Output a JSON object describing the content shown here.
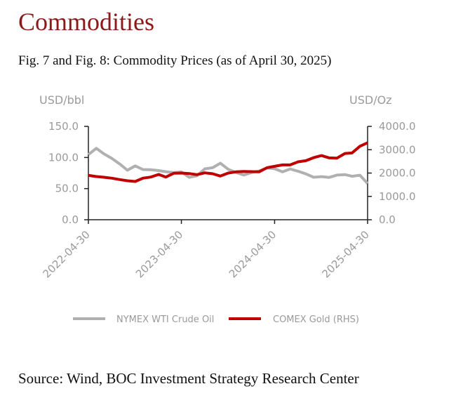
{
  "section_title": "Commodities",
  "figure_title": "Fig. 7 and Fig. 8: Commodity Prices (as of April 30, 2025)",
  "source_note": "Source: Wind, BOC Investment Strategy Research Center",
  "colors": {
    "heading": "#8b1a1a",
    "oil": "#b0b0b0",
    "gold": "#c00000",
    "axis": "#222222",
    "label": "#9a9a9a"
  },
  "chart_data": {
    "type": "line",
    "left_axis_unit": "USD/bbl",
    "right_axis_unit": "USD/Oz",
    "ylim_left": [
      0,
      150
    ],
    "ylim_right": [
      0,
      4000
    ],
    "y_ticks_left": [
      "0.0",
      "50.0",
      "100.0",
      "150.0"
    ],
    "y_ticks_right": [
      "0.0",
      "1000.0",
      "2000.0",
      "3000.0",
      "4000.0"
    ],
    "x_ticks": [
      "2022-04-30",
      "2023-04-30",
      "2024-04-30",
      "2025-04-30"
    ],
    "x_start": "2022-04-30",
    "x_end": "2025-04-30",
    "legend_position": "bottom",
    "grid": false,
    "series": [
      {
        "name": "NYMEX WTI Crude Oil",
        "axis": "left",
        "x": [
          "2022-04-30",
          "2022-05-31",
          "2022-06-30",
          "2022-07-31",
          "2022-08-31",
          "2022-09-30",
          "2022-10-31",
          "2022-11-30",
          "2022-12-31",
          "2023-01-31",
          "2023-02-28",
          "2023-03-31",
          "2023-04-30",
          "2023-05-31",
          "2023-06-30",
          "2023-07-31",
          "2023-08-31",
          "2023-09-30",
          "2023-10-31",
          "2023-11-30",
          "2023-12-31",
          "2024-01-31",
          "2024-02-29",
          "2024-03-31",
          "2024-04-30",
          "2024-05-31",
          "2024-06-30",
          "2024-07-31",
          "2024-08-31",
          "2024-09-30",
          "2024-10-31",
          "2024-11-30",
          "2024-12-31",
          "2025-01-31",
          "2025-02-28",
          "2025-03-31",
          "2025-04-30"
        ],
        "values": [
          104.7,
          114.7,
          105.8,
          98.6,
          89.6,
          79.5,
          86.5,
          80.6,
          80.3,
          78.9,
          77.1,
          75.7,
          76.8,
          68.1,
          70.6,
          81.8,
          83.6,
          90.8,
          81.0,
          75.96,
          71.7,
          75.9,
          78.3,
          83.2,
          81.9,
          76.99,
          81.5,
          77.9,
          73.6,
          68.2,
          69.3,
          68.0,
          71.7,
          72.5,
          69.8,
          71.5,
          58.2
        ]
      },
      {
        "name": "COMEX Gold (RHS)",
        "axis": "right",
        "x": [
          "2022-04-30",
          "2022-05-31",
          "2022-06-30",
          "2022-07-31",
          "2022-08-31",
          "2022-09-30",
          "2022-10-31",
          "2022-11-30",
          "2022-12-31",
          "2023-01-31",
          "2023-02-28",
          "2023-03-31",
          "2023-04-30",
          "2023-05-31",
          "2023-06-30",
          "2023-07-31",
          "2023-08-31",
          "2023-09-30",
          "2023-10-31",
          "2023-11-30",
          "2023-12-31",
          "2024-01-31",
          "2024-02-29",
          "2024-03-31",
          "2024-04-30",
          "2024-05-31",
          "2024-06-30",
          "2024-07-31",
          "2024-08-31",
          "2024-09-30",
          "2024-10-31",
          "2024-11-30",
          "2024-12-31",
          "2025-01-31",
          "2025-02-28",
          "2025-03-31",
          "2025-04-30"
        ],
        "values": [
          1900,
          1850,
          1820,
          1780,
          1720,
          1670,
          1640,
          1780,
          1830,
          1940,
          1830,
          1990,
          2000,
          1980,
          1930,
          2010,
          1970,
          1870,
          2000,
          2050,
          2070,
          2060,
          2050,
          2230,
          2290,
          2350,
          2350,
          2480,
          2530,
          2660,
          2750,
          2650,
          2640,
          2840,
          2860,
          3150,
          3300
        ]
      }
    ]
  }
}
